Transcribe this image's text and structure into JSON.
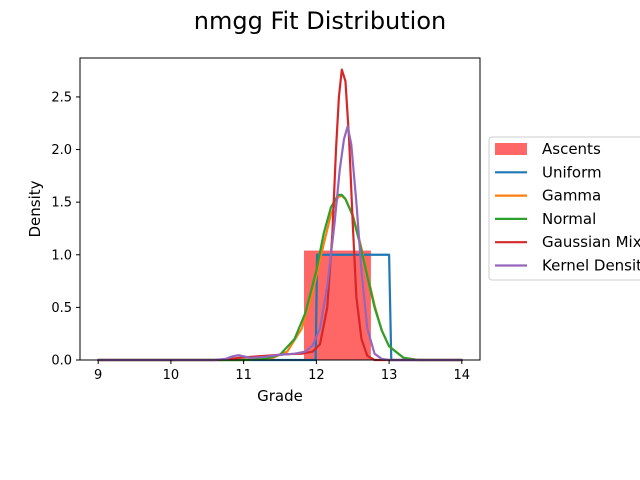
{
  "chart_data": {
    "type": "line",
    "title": "nmgg Fit Distribution",
    "xlabel": "Grade",
    "ylabel": "Density",
    "xlim": [
      8.75,
      14.25
    ],
    "ylim": [
      0,
      2.87
    ],
    "xticks": [
      "9",
      "10",
      "11",
      "12",
      "13",
      "14"
    ],
    "yticks": [
      "0.0",
      "0.5",
      "1.0",
      "1.5",
      "2.0",
      "2.5"
    ],
    "grid": false,
    "legend_position": "right",
    "histogram": {
      "name": "Ascents",
      "color": "#ff6666",
      "bins": [
        {
          "x0": 11.83,
          "x1": 12.75,
          "value": 1.04
        }
      ]
    },
    "series": [
      {
        "name": "Uniform",
        "color": "#1f77b4",
        "points": [
          [
            9.0,
            0.0
          ],
          [
            11.99,
            0.0
          ],
          [
            12.01,
            1.0
          ],
          [
            13.0,
            1.0
          ],
          [
            13.03,
            0.0
          ],
          [
            14.0,
            0.0
          ]
        ]
      },
      {
        "name": "Gamma",
        "color": "#ff7f0e",
        "points": [
          [
            9.0,
            0.0
          ],
          [
            11.0,
            0.0
          ],
          [
            11.4,
            0.02
          ],
          [
            11.6,
            0.08
          ],
          [
            11.8,
            0.3
          ],
          [
            11.95,
            0.65
          ],
          [
            12.1,
            1.1
          ],
          [
            12.2,
            1.38
          ],
          [
            12.3,
            1.55
          ],
          [
            12.35,
            1.56
          ],
          [
            12.4,
            1.53
          ],
          [
            12.5,
            1.38
          ],
          [
            12.6,
            1.12
          ],
          [
            12.7,
            0.82
          ],
          [
            12.8,
            0.52
          ],
          [
            12.9,
            0.28
          ],
          [
            13.0,
            0.13
          ],
          [
            13.2,
            0.02
          ],
          [
            13.4,
            0.0
          ],
          [
            14.0,
            0.0
          ]
        ]
      },
      {
        "name": "Normal",
        "color": "#2ca02c",
        "points": [
          [
            9.0,
            0.0
          ],
          [
            11.0,
            0.0
          ],
          [
            11.3,
            0.01
          ],
          [
            11.5,
            0.05
          ],
          [
            11.7,
            0.2
          ],
          [
            11.85,
            0.45
          ],
          [
            12.0,
            0.85
          ],
          [
            12.1,
            1.2
          ],
          [
            12.2,
            1.45
          ],
          [
            12.3,
            1.57
          ],
          [
            12.35,
            1.57
          ],
          [
            12.4,
            1.53
          ],
          [
            12.5,
            1.37
          ],
          [
            12.6,
            1.1
          ],
          [
            12.7,
            0.8
          ],
          [
            12.8,
            0.5
          ],
          [
            12.9,
            0.28
          ],
          [
            13.0,
            0.13
          ],
          [
            13.2,
            0.02
          ],
          [
            13.4,
            0.0
          ],
          [
            14.0,
            0.0
          ]
        ]
      },
      {
        "name": "Gaussian Mixture",
        "color": "#d62728",
        "points": [
          [
            9.0,
            0.0
          ],
          [
            10.6,
            0.0
          ],
          [
            10.8,
            0.01
          ],
          [
            11.0,
            0.025
          ],
          [
            11.3,
            0.04
          ],
          [
            11.6,
            0.055
          ],
          [
            11.8,
            0.06
          ],
          [
            11.95,
            0.08
          ],
          [
            12.05,
            0.15
          ],
          [
            12.15,
            0.5
          ],
          [
            12.22,
            1.2
          ],
          [
            12.27,
            2.0
          ],
          [
            12.31,
            2.5
          ],
          [
            12.35,
            2.76
          ],
          [
            12.4,
            2.65
          ],
          [
            12.45,
            2.1
          ],
          [
            12.5,
            1.3
          ],
          [
            12.55,
            0.6
          ],
          [
            12.62,
            0.2
          ],
          [
            12.7,
            0.04
          ],
          [
            12.8,
            0.0
          ],
          [
            14.0,
            0.0
          ]
        ]
      },
      {
        "name": "Kernel Density",
        "color": "#9467bd",
        "points": [
          [
            9.0,
            0.0
          ],
          [
            10.6,
            0.0
          ],
          [
            10.75,
            0.01
          ],
          [
            10.85,
            0.035
          ],
          [
            10.93,
            0.045
          ],
          [
            11.0,
            0.035
          ],
          [
            11.1,
            0.02
          ],
          [
            11.3,
            0.03
          ],
          [
            11.5,
            0.05
          ],
          [
            11.7,
            0.06
          ],
          [
            11.85,
            0.08
          ],
          [
            11.95,
            0.14
          ],
          [
            12.05,
            0.3
          ],
          [
            12.15,
            0.7
          ],
          [
            12.25,
            1.3
          ],
          [
            12.32,
            1.8
          ],
          [
            12.38,
            2.1
          ],
          [
            12.43,
            2.22
          ],
          [
            12.48,
            2.05
          ],
          [
            12.55,
            1.5
          ],
          [
            12.62,
            0.85
          ],
          [
            12.7,
            0.3
          ],
          [
            12.8,
            0.06
          ],
          [
            12.9,
            0.01
          ],
          [
            13.0,
            0.0
          ],
          [
            14.0,
            0.0
          ]
        ]
      }
    ]
  }
}
